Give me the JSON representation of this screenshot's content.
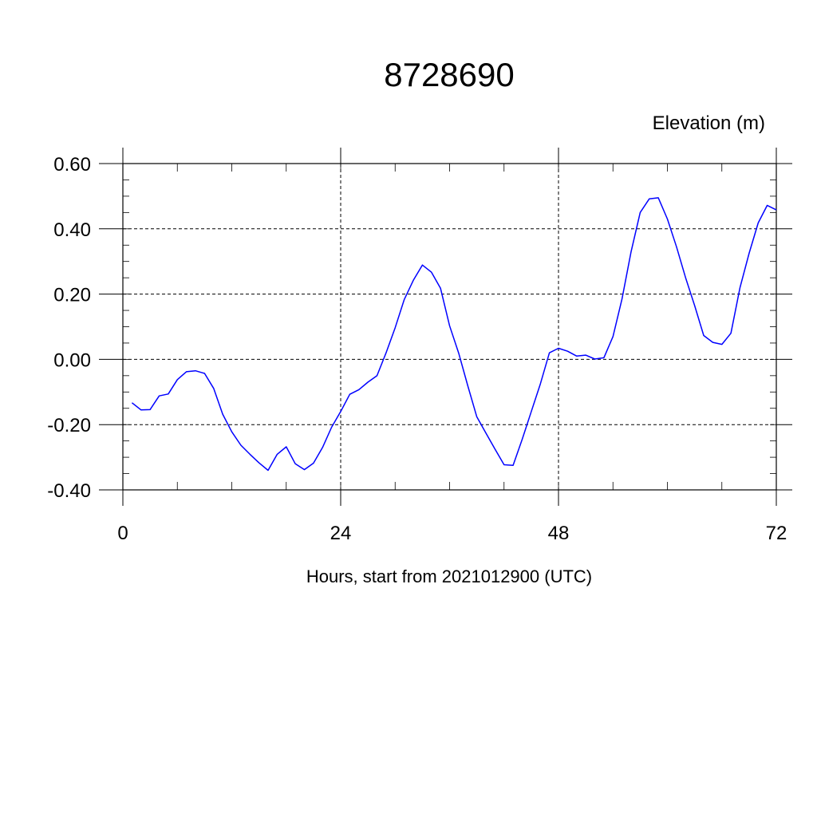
{
  "chart_data": {
    "type": "line",
    "title": "8728690",
    "ylabel": "Elevation (m)",
    "xlabel": "Hours, start from 2021012900 (UTC)",
    "xlim": [
      0,
      72
    ],
    "ylim": [
      -0.4,
      0.6
    ],
    "xticks": [
      0,
      24,
      48,
      72
    ],
    "xtick_labels": [
      "0",
      "24",
      "48",
      "72"
    ],
    "yticks": [
      -0.4,
      -0.2,
      0.0,
      0.2,
      0.4,
      0.6
    ],
    "ytick_labels": [
      "-0.40",
      "-0.20",
      "0.00",
      "0.20",
      "0.40",
      "0.60"
    ],
    "grid": true,
    "series_color": "#0000ff",
    "series": [
      {
        "x": [
          1,
          2,
          3,
          4,
          5,
          6,
          7,
          8,
          9,
          10,
          11,
          12,
          13,
          14,
          15,
          16,
          17,
          18,
          19,
          20,
          21,
          22,
          23,
          24,
          25,
          26,
          27,
          28,
          29,
          30,
          31,
          32,
          33,
          34,
          35,
          36,
          37,
          38,
          39,
          40,
          41,
          42,
          43,
          44,
          45,
          46,
          47,
          48,
          49,
          50,
          51,
          52,
          53,
          54,
          55,
          56,
          57,
          58,
          59,
          60,
          61,
          62,
          63,
          64,
          65,
          66,
          67,
          68,
          69,
          70,
          71,
          72
        ],
        "values": [
          -0.133,
          -0.155,
          -0.154,
          -0.112,
          -0.106,
          -0.062,
          -0.038,
          -0.035,
          -0.043,
          -0.089,
          -0.168,
          -0.222,
          -0.263,
          -0.291,
          -0.317,
          -0.34,
          -0.291,
          -0.268,
          -0.32,
          -0.338,
          -0.318,
          -0.27,
          -0.208,
          -0.16,
          -0.107,
          -0.093,
          -0.07,
          -0.05,
          0.02,
          0.097,
          0.183,
          0.242,
          0.289,
          0.267,
          0.218,
          0.103,
          0.019,
          -0.081,
          -0.176,
          -0.226,
          -0.275,
          -0.323,
          -0.325,
          -0.245,
          -0.16,
          -0.075,
          0.02,
          0.034,
          0.025,
          0.01,
          0.013,
          0.001,
          0.005,
          0.07,
          0.185,
          0.33,
          0.45,
          0.492,
          0.495,
          0.43,
          0.345,
          0.25,
          0.165,
          0.073,
          0.052,
          0.046,
          0.08,
          0.22,
          0.325,
          0.418,
          0.472,
          0.458
        ]
      }
    ]
  }
}
